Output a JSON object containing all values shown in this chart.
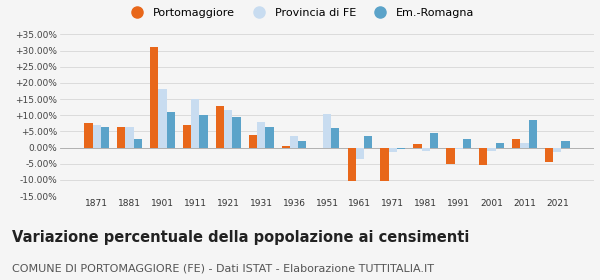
{
  "years": [
    1871,
    1881,
    1901,
    1911,
    1921,
    1931,
    1936,
    1951,
    1961,
    1971,
    1981,
    1991,
    2001,
    2011,
    2021
  ],
  "portomaggiore": [
    7.5,
    6.5,
    31.0,
    7.0,
    13.0,
    4.0,
    0.5,
    -0.2,
    -10.5,
    -10.5,
    1.0,
    -5.0,
    -5.5,
    2.5,
    -4.5
  ],
  "provincia_fe": [
    7.0,
    6.5,
    18.0,
    15.0,
    11.5,
    8.0,
    3.5,
    10.5,
    -3.5,
    -1.5,
    -1.0,
    -0.5,
    -1.0,
    1.5,
    -1.5
  ],
  "em_romagna": [
    6.5,
    2.5,
    11.0,
    10.0,
    9.5,
    6.5,
    2.0,
    6.0,
    3.5,
    -0.5,
    4.5,
    2.5,
    1.5,
    8.5,
    2.0
  ],
  "color_porto": "#E8671A",
  "color_fe": "#C8DCF0",
  "color_em": "#5BA3C9",
  "ylim": [
    -15,
    37
  ],
  "yticks": [
    -15,
    -10,
    -5,
    0,
    5,
    10,
    15,
    20,
    25,
    30,
    35
  ],
  "title": "Variazione percentuale della popolazione ai censimenti",
  "subtitle": "COMUNE DI PORTOMAGGIORE (FE) - Dati ISTAT - Elaborazione TUTTITALIA.IT",
  "legend_labels": [
    "Portomaggiore",
    "Provincia di FE",
    "Em.-Romagna"
  ],
  "title_fontsize": 10.5,
  "subtitle_fontsize": 8.0,
  "bg_color": "#f5f5f5"
}
